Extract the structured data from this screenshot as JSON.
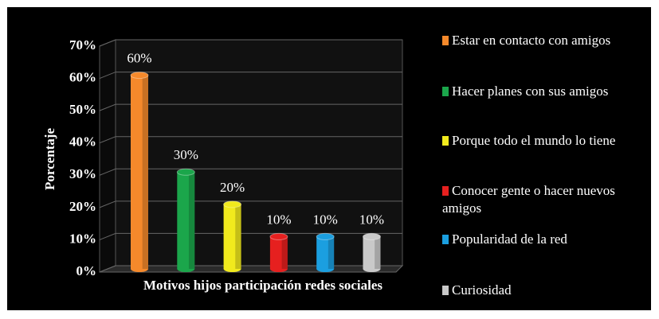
{
  "chart_data": {
    "type": "bar",
    "categories": [
      "Estar en contacto con amigos",
      "Hacer planes con sus amigos",
      "Porque todo el mundo lo tiene",
      "Conocer gente o hacer nuevos amigos",
      "Popularidad de la red",
      "Curiosidad"
    ],
    "values": [
      60,
      30,
      20,
      10,
      10,
      10
    ],
    "value_labels": [
      "60%",
      "30%",
      "20%",
      "10%",
      "10%",
      "10%"
    ],
    "colors": [
      "#f5892b",
      "#1ba64b",
      "#f1ea1d",
      "#e6201f",
      "#1b9fe0",
      "#c9c9c9"
    ],
    "xlabel": "Motivos hijos participación redes sociales",
    "ylabel": "Porcentaje",
    "ylim": [
      0,
      70
    ],
    "yticks": [
      {
        "value": 0,
        "label": "0%"
      },
      {
        "value": 10,
        "label": "10%"
      },
      {
        "value": 20,
        "label": "20%"
      },
      {
        "value": 30,
        "label": "30%"
      },
      {
        "value": 40,
        "label": "40%"
      },
      {
        "value": 50,
        "label": "50%"
      },
      {
        "value": 60,
        "label": "60%"
      },
      {
        "value": 70,
        "label": "70%"
      }
    ],
    "grid": true,
    "legend": "right"
  }
}
